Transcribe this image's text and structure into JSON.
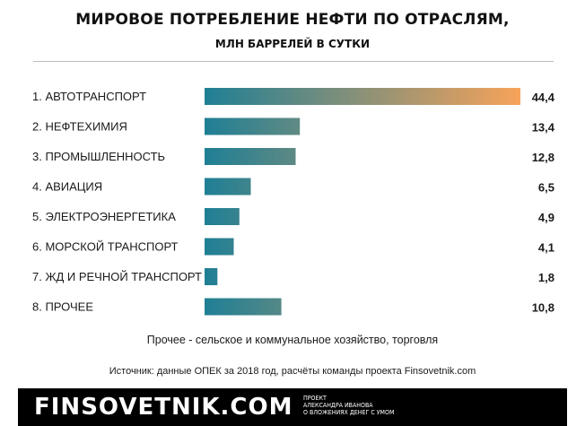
{
  "header": {
    "title": "МИРОВОЕ ПОТРЕБЛЕНИЕ НЕФТИ ПО ОТРАСЛЯМ,",
    "subtitle": "МЛН БАРРЕЛЕЙ В СУТКИ"
  },
  "chart_data": {
    "type": "bar",
    "orientation": "horizontal",
    "categories": [
      "1. АВТОТРАНСПОРТ",
      "2. НЕФТЕХИМИЯ",
      "3. ПРОМЫШЛЕННОСТЬ",
      "4. АВИАЦИЯ",
      "5. ЭЛЕКТРОЭНЕРГЕТИКА",
      "6. МОРСКОЙ ТРАНСПОРТ",
      "7. ЖД И РЕЧНОЙ ТРАНСПОРТ",
      "8. ПРОЧЕЕ"
    ],
    "values": [
      44.4,
      13.4,
      12.8,
      6.5,
      4.9,
      4.1,
      1.8,
      10.8
    ],
    "value_labels": [
      "44,4",
      "13,4",
      "12,8",
      "6,5",
      "4,9",
      "4,1",
      "1,8",
      "10,8"
    ],
    "xlim": [
      0,
      44.4
    ],
    "grid": false,
    "colors": {
      "start": "#1f7f95",
      "end": "#f7a35a"
    }
  },
  "notes": {
    "other_note": "Прочее - сельское и коммунальное хозяйство, торговля",
    "source": "Источник: данные ОПЕК за 2018 год, расчёты команды проекта Finsovetnik.com"
  },
  "footer": {
    "brand": "FINSOVETNIK.COM",
    "tagline": [
      "ПРОЕКТ",
      "АЛЕКСАНДРА ИВАНОВА",
      "О ВЛОЖЕНИЯХ ДЕНЕГ С УМОМ"
    ]
  }
}
